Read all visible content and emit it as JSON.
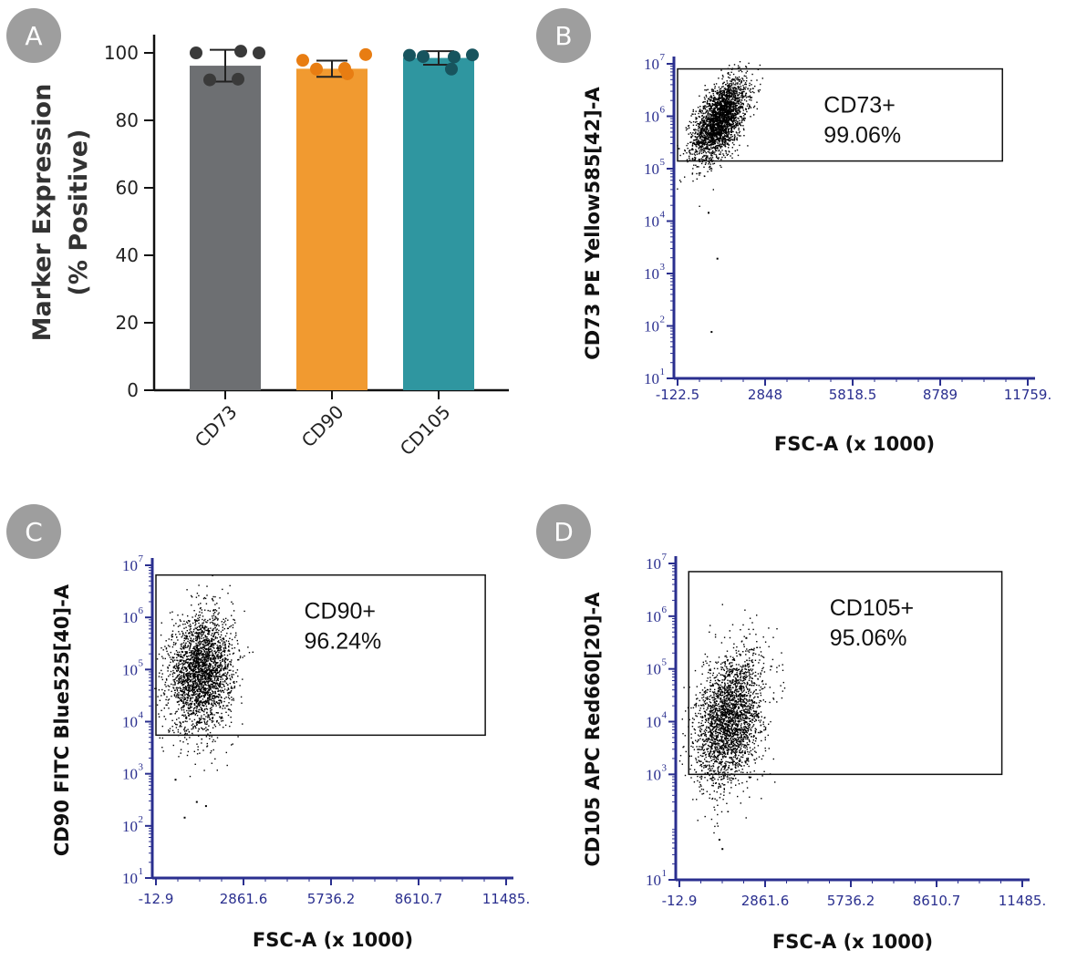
{
  "colors": {
    "panel_badge": "#9e9e9e",
    "axis_blue": "#2a2f8f",
    "bar_cd73": "#6d6f72",
    "bar_cd90": "#f19a30",
    "bar_cd105": "#2f96a0",
    "dots_cd73": "#3a3a3a",
    "dots_cd90": "#e87d12",
    "dots_cd105": "#17545e"
  },
  "panels": {
    "A": {
      "letter": "A"
    },
    "B": {
      "letter": "B"
    },
    "C": {
      "letter": "C"
    },
    "D": {
      "letter": "D"
    }
  },
  "chart_data": [
    {
      "panel": "A",
      "type": "bar",
      "title": "",
      "xlabel": "",
      "ylabel_lines": [
        "Marker Expression",
        "(% Positive)"
      ],
      "ylim": [
        0,
        100
      ],
      "y_ticks": [
        0,
        20,
        40,
        60,
        80,
        100
      ],
      "categories": [
        "CD73",
        "CD90",
        "CD105"
      ],
      "values": [
        96.2,
        95.3,
        98.5
      ],
      "errors": [
        4.7,
        2.4,
        2.0
      ],
      "replicates": [
        [
          100,
          100.5,
          100,
          92,
          92.2
        ],
        [
          97.8,
          93.8,
          99.5,
          95.2,
          95.4
        ],
        [
          99.3,
          98.8,
          99.4,
          98.9,
          95.2
        ]
      ]
    },
    {
      "panel": "B",
      "type": "scatter",
      "ylabel": "CD73 PE Yellow585[42]-A",
      "xlabel": "FSC-A (x 1000)",
      "x_ticks": [
        "-122.5",
        "2848",
        "5818.5",
        "8789",
        "11759."
      ],
      "x_range": [
        -122.5,
        11759
      ],
      "y_scale": "log",
      "y_range": [
        10,
        10000000
      ],
      "y_tick_exponents": [
        "1",
        "2",
        "3",
        "4",
        "5",
        "6",
        "7"
      ],
      "gate": {
        "label": "CD73+",
        "percent": "99.06%",
        "x_range": [
          -122.5,
          10900
        ],
        "y_range": [
          140000,
          8000000
        ]
      },
      "population": {
        "x_center": 1300,
        "x_sd": 450,
        "y_log_center": 5.95,
        "y_log_sd": 0.32,
        "tilt": 0.00045
      },
      "outliers": [
        [
          1000,
          80
        ],
        [
          900,
          15000
        ],
        [
          1200,
          2000
        ]
      ]
    },
    {
      "panel": "C",
      "type": "scatter",
      "ylabel": "CD90 FITC Blue525[40]-A",
      "xlabel": "FSC-A (x 1000)",
      "x_ticks": [
        "-12.9",
        "2861.6",
        "5736.2",
        "8610.7",
        "11485."
      ],
      "x_range": [
        -12.9,
        11485
      ],
      "y_scale": "log",
      "y_range": [
        10,
        10000000
      ],
      "y_tick_exponents": [
        "1",
        "2",
        "3",
        "4",
        "5",
        "6",
        "7"
      ],
      "gate": {
        "label": "CD90+",
        "percent": "96.24%",
        "x_range": [
          -12.9,
          10800
        ],
        "y_range": [
          5500,
          6500000
        ]
      },
      "population": {
        "x_center": 1450,
        "x_sd": 520,
        "y_log_center": 4.95,
        "y_log_sd": 0.55,
        "tilt": 0.00012
      },
      "outliers": [
        [
          900,
          150
        ],
        [
          1600,
          250
        ],
        [
          600,
          800
        ],
        [
          1300,
          300
        ]
      ]
    },
    {
      "panel": "D",
      "type": "scatter",
      "ylabel": "CD105 APC Red660[20]-A",
      "xlabel": "FSC-A (x 1000)",
      "x_ticks": [
        "-12.9",
        "2861.6",
        "5736.2",
        "8610.7",
        "11485."
      ],
      "x_range": [
        -12.9,
        11485
      ],
      "y_scale": "log",
      "y_range": [
        10,
        10000000
      ],
      "y_tick_exponents": [
        "1",
        "3",
        "4",
        "5",
        "6",
        "7"
      ],
      "gate": {
        "label": "CD105+",
        "percent": "95.06%",
        "x_range": [
          300,
          10800
        ],
        "y_range": [
          1000,
          7000000
        ]
      },
      "population": {
        "x_center": 1650,
        "x_sd": 560,
        "y_log_center": 4.05,
        "y_log_sd": 0.6,
        "tilt": 0.00035
      },
      "outliers": [
        [
          1400,
          40
        ],
        [
          1300,
          60
        ],
        [
          2200,
          400000
        ]
      ]
    }
  ]
}
